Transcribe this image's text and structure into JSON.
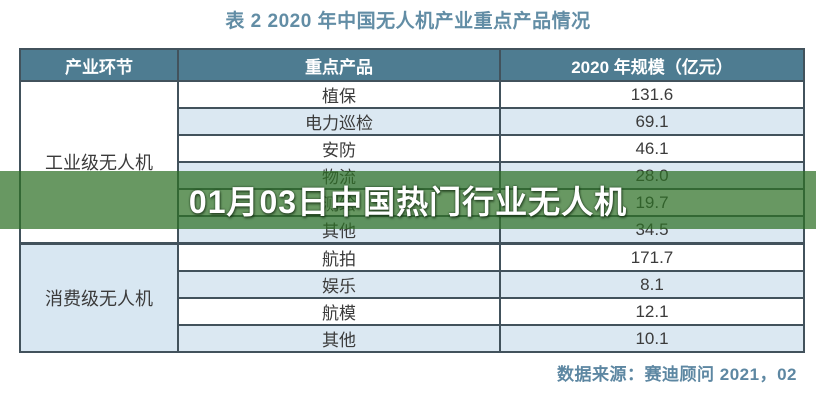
{
  "page": {
    "title": "表 2 2020 年中国无人机产业重点产品情况",
    "source_note": "数据来源：赛迪顾问  2021，02"
  },
  "overlay": {
    "headline": "01月03日中国热门行业无人机",
    "band_color": "#2e7026",
    "band_opacity": 0.72,
    "text_color": "#ffffff"
  },
  "table": {
    "headers": [
      "产业环节",
      "重点产品",
      "2020 年规模（亿元）"
    ],
    "groups": [
      {
        "label": "工业级无人机",
        "rows": [
          {
            "product": "植保",
            "value": "131.6"
          },
          {
            "product": "电力巡检",
            "value": "69.1"
          },
          {
            "product": "安防",
            "value": "46.1"
          },
          {
            "product": "物流",
            "value": "28.0"
          },
          {
            "product": "测绘",
            "value": "19.7"
          },
          {
            "product": "其他",
            "value": "34.5"
          }
        ]
      },
      {
        "label": "消费级无人机",
        "rows": [
          {
            "product": "航拍",
            "value": "171.7"
          },
          {
            "product": "娱乐",
            "value": "8.1"
          },
          {
            "product": "航模",
            "value": "12.1"
          },
          {
            "product": "其他",
            "value": "10.1"
          }
        ]
      }
    ]
  },
  "colors": {
    "header_bg": "#4e7c91",
    "stripe_blue": "#dbe8f2",
    "border": "#42525c",
    "cell_text": "#3b3b3b",
    "title_text": "#628da5",
    "source_text": "#5d87a2"
  },
  "chart_data": {
    "type": "table",
    "title": "表 2 2020 年中国无人机产业重点产品情况",
    "columns": [
      "产业环节",
      "重点产品",
      "2020 年规模（亿元）"
    ],
    "rows": [
      [
        "工业级无人机",
        "植保",
        131.6
      ],
      [
        "工业级无人机",
        "电力巡检",
        69.1
      ],
      [
        "工业级无人机",
        "安防",
        46.1
      ],
      [
        "工业级无人机",
        "物流",
        28.0
      ],
      [
        "工业级无人机",
        "测绘",
        19.7
      ],
      [
        "工业级无人机",
        "其他",
        34.5
      ],
      [
        "消费级无人机",
        "航拍",
        171.7
      ],
      [
        "消费级无人机",
        "娱乐",
        8.1
      ],
      [
        "消费级无人机",
        "航模",
        12.1
      ],
      [
        "消费级无人机",
        "其他",
        10.1
      ]
    ],
    "source": "数据来源：赛迪顾问  2021，02",
    "overlay_headline": "01月03日中国热门行业无人机"
  }
}
